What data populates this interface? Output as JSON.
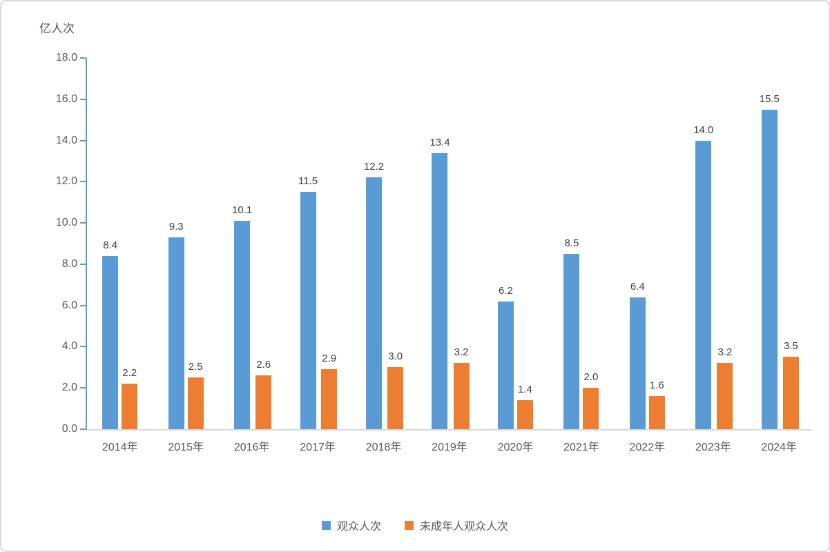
{
  "frame": {
    "background": "#ffffff",
    "border_color": "#d9d9d9"
  },
  "chart": {
    "axis_color": "#5b9bd5",
    "baseline_color": "#d9d9d9",
    "axis_text_color": "#595959",
    "data_label_color": "#404040"
  },
  "chart_data": {
    "type": "bar",
    "title": "",
    "unit_label": "亿人次",
    "categories": [
      "2014年",
      "2015年",
      "2016年",
      "2017年",
      "2018年",
      "2019年",
      "2020年",
      "2021年",
      "2022年",
      "2023年",
      "2024年"
    ],
    "series": [
      {
        "name": "观众人次",
        "color": "#5b9bd5",
        "values": [
          8.4,
          9.3,
          10.1,
          11.5,
          12.2,
          13.4,
          6.2,
          8.5,
          6.4,
          14.0,
          15.5
        ],
        "labels": [
          "8.4",
          "9.3",
          "10.1",
          "11.5",
          "12.2",
          "13.4",
          "6.2",
          "8.5",
          "6.4",
          "14.0",
          "15.5"
        ]
      },
      {
        "name": "未成年人观众人次",
        "color": "#ed7d31",
        "values": [
          2.2,
          2.5,
          2.6,
          2.9,
          3.0,
          3.2,
          1.4,
          2.0,
          1.6,
          3.2,
          3.5
        ],
        "labels": [
          "2.2",
          "2.5",
          "2.6",
          "2.9",
          "3.0",
          "3.2",
          "1.4",
          "2.0",
          "1.6",
          "3.2",
          "3.5"
        ]
      }
    ],
    "ylim": [
      0,
      18
    ],
    "y_ticks": [
      "0.0",
      "2.0",
      "4.0",
      "6.0",
      "8.0",
      "10.0",
      "12.0",
      "14.0",
      "16.0",
      "18.0"
    ],
    "grid": false,
    "legend_position": "bottom"
  }
}
